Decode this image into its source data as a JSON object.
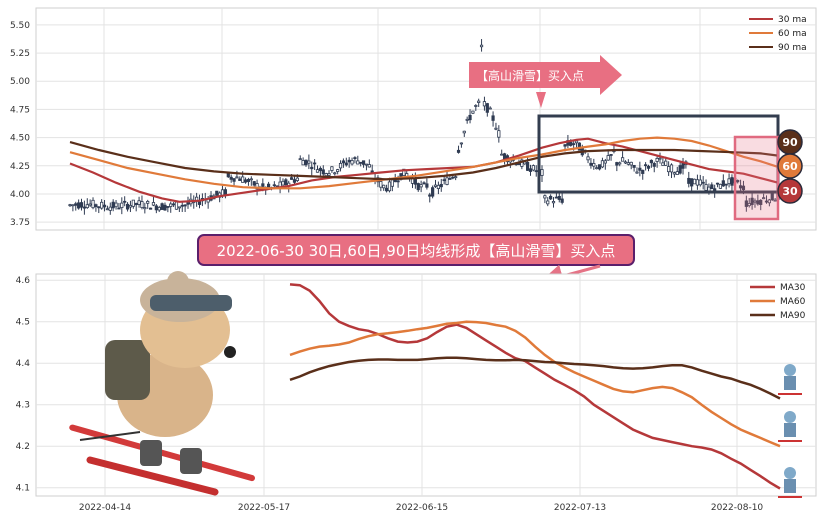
{
  "chart_data": [
    {
      "type": "candlestick",
      "ylim": [
        3.68,
        5.65
      ],
      "y_ticks": [
        "3.75",
        "4.00",
        "4.25",
        "4.50",
        "4.75",
        "5.00",
        "5.25",
        "5.50"
      ],
      "grid": true,
      "legend": [
        "30 ma",
        "60 ma",
        "90 ma"
      ],
      "legend_position": "top-right",
      "series": [
        {
          "name": "30 ma",
          "color": "#b5383a",
          "values": [
            [
              0,
              4.27
            ],
            [
              8,
              4.19
            ],
            [
              16,
              4.1
            ],
            [
              24,
              4.02
            ],
            [
              32,
              3.96
            ],
            [
              38,
              3.93
            ],
            [
              45,
              3.94
            ],
            [
              52,
              3.98
            ],
            [
              60,
              4.01
            ],
            [
              68,
              4.04
            ],
            [
              76,
              4.07
            ],
            [
              84,
              4.12
            ],
            [
              92,
              4.15
            ],
            [
              100,
              4.17
            ],
            [
              108,
              4.19
            ],
            [
              116,
              4.21
            ],
            [
              124,
              4.22
            ],
            [
              132,
              4.23
            ],
            [
              140,
              4.24
            ],
            [
              148,
              4.28
            ],
            [
              156,
              4.34
            ],
            [
              164,
              4.41
            ],
            [
              170,
              4.45
            ],
            [
              176,
              4.48
            ],
            [
              180,
              4.49
            ],
            [
              186,
              4.45
            ],
            [
              192,
              4.42
            ],
            [
              198,
              4.38
            ],
            [
              204,
              4.34
            ],
            [
              210,
              4.3
            ],
            [
              216,
              4.26
            ],
            [
              222,
              4.22
            ],
            [
              228,
              4.2
            ],
            [
              234,
              4.18
            ],
            [
              240,
              4.14
            ],
            [
              246,
              4.1
            ]
          ]
        },
        {
          "name": "60 ma",
          "color": "#e07a3a",
          "values": [
            [
              0,
              4.37
            ],
            [
              10,
              4.3
            ],
            [
              20,
              4.23
            ],
            [
              30,
              4.18
            ],
            [
              40,
              4.13
            ],
            [
              50,
              4.09
            ],
            [
              60,
              4.06
            ],
            [
              70,
              4.05
            ],
            [
              80,
              4.05
            ],
            [
              90,
              4.07
            ],
            [
              100,
              4.1
            ],
            [
              110,
              4.13
            ],
            [
              120,
              4.16
            ],
            [
              130,
              4.2
            ],
            [
              140,
              4.24
            ],
            [
              148,
              4.28
            ],
            [
              156,
              4.32
            ],
            [
              164,
              4.35
            ],
            [
              172,
              4.39
            ],
            [
              180,
              4.42
            ],
            [
              186,
              4.44
            ],
            [
              192,
              4.47
            ],
            [
              198,
              4.49
            ],
            [
              204,
              4.5
            ],
            [
              210,
              4.49
            ],
            [
              216,
              4.47
            ],
            [
              222,
              4.43
            ],
            [
              228,
              4.38
            ],
            [
              234,
              4.33
            ],
            [
              240,
              4.29
            ],
            [
              246,
              4.24
            ]
          ]
        },
        {
          "name": "90 ma",
          "color": "#5a2f1a",
          "values": [
            [
              0,
              4.46
            ],
            [
              10,
              4.39
            ],
            [
              20,
              4.33
            ],
            [
              30,
              4.28
            ],
            [
              40,
              4.23
            ],
            [
              50,
              4.2
            ],
            [
              60,
              4.18
            ],
            [
              70,
              4.17
            ],
            [
              80,
              4.16
            ],
            [
              90,
              4.15
            ],
            [
              100,
              4.14
            ],
            [
              110,
              4.13
            ],
            [
              120,
              4.14
            ],
            [
              130,
              4.16
            ],
            [
              140,
              4.19
            ],
            [
              148,
              4.23
            ],
            [
              156,
              4.28
            ],
            [
              164,
              4.33
            ],
            [
              172,
              4.36
            ],
            [
              180,
              4.38
            ],
            [
              190,
              4.39
            ],
            [
              200,
              4.39
            ],
            [
              210,
              4.39
            ],
            [
              220,
              4.38
            ],
            [
              230,
              4.37
            ],
            [
              240,
              4.36
            ],
            [
              246,
              4.34
            ]
          ]
        }
      ],
      "annotations": {
        "callout": "【高山滑雪】买入点",
        "bubbles": [
          "90",
          "60",
          "30"
        ]
      }
    },
    {
      "type": "line",
      "x_ticks": [
        "2022-04-14",
        "2022-05-17",
        "2022-06-15",
        "2022-07-13",
        "2022-08-10"
      ],
      "ylim": [
        4.08,
        4.615
      ],
      "y_ticks": [
        "4.1",
        "4.2",
        "4.3",
        "4.4",
        "4.5",
        "4.6"
      ],
      "grid": true,
      "legend_position": "top-right",
      "series": [
        {
          "name": "MA30",
          "color": "#b5383a",
          "values": [
            [
              0,
              4.59
            ],
            [
              3,
              4.588
            ],
            [
              6,
              4.575
            ],
            [
              9,
              4.55
            ],
            [
              12,
              4.52
            ],
            [
              15,
              4.5
            ],
            [
              18,
              4.49
            ],
            [
              21,
              4.482
            ],
            [
              24,
              4.478
            ],
            [
              27,
              4.47
            ],
            [
              30,
              4.46
            ],
            [
              33,
              4.452
            ],
            [
              36,
              4.45
            ],
            [
              39,
              4.452
            ],
            [
              42,
              4.46
            ],
            [
              45,
              4.475
            ],
            [
              48,
              4.488
            ],
            [
              51,
              4.493
            ],
            [
              54,
              4.485
            ],
            [
              57,
              4.47
            ],
            [
              60,
              4.455
            ],
            [
              63,
              4.44
            ],
            [
              66,
              4.425
            ],
            [
              69,
              4.412
            ],
            [
              72,
              4.405
            ],
            [
              75,
              4.39
            ],
            [
              78,
              4.375
            ],
            [
              81,
              4.36
            ],
            [
              84,
              4.348
            ],
            [
              87,
              4.335
            ],
            [
              90,
              4.32
            ],
            [
              93,
              4.3
            ],
            [
              96,
              4.285
            ],
            [
              99,
              4.27
            ],
            [
              102,
              4.255
            ],
            [
              105,
              4.24
            ],
            [
              108,
              4.23
            ],
            [
              111,
              4.22
            ],
            [
              114,
              4.215
            ],
            [
              117,
              4.21
            ],
            [
              120,
              4.205
            ],
            [
              123,
              4.2
            ],
            [
              126,
              4.197
            ],
            [
              129,
              4.192
            ],
            [
              132,
              4.183
            ],
            [
              135,
              4.17
            ],
            [
              138,
              4.158
            ],
            [
              141,
              4.143
            ],
            [
              144,
              4.128
            ],
            [
              147,
              4.112
            ],
            [
              150,
              4.098
            ]
          ]
        },
        {
          "name": "MA60",
          "color": "#e07a3a",
          "values": [
            [
              0,
              4.42
            ],
            [
              3,
              4.428
            ],
            [
              6,
              4.435
            ],
            [
              9,
              4.44
            ],
            [
              12,
              4.442
            ],
            [
              15,
              4.445
            ],
            [
              18,
              4.45
            ],
            [
              21,
              4.458
            ],
            [
              24,
              4.465
            ],
            [
              27,
              4.47
            ],
            [
              30,
              4.472
            ],
            [
              33,
              4.475
            ],
            [
              36,
              4.478
            ],
            [
              39,
              4.482
            ],
            [
              42,
              4.485
            ],
            [
              45,
              4.49
            ],
            [
              48,
              4.495
            ],
            [
              51,
              4.497
            ],
            [
              54,
              4.5
            ],
            [
              57,
              4.499
            ],
            [
              60,
              4.497
            ],
            [
              63,
              4.492
            ],
            [
              66,
              4.488
            ],
            [
              69,
              4.478
            ],
            [
              72,
              4.462
            ],
            [
              75,
              4.44
            ],
            [
              78,
              4.42
            ],
            [
              81,
              4.403
            ],
            [
              84,
              4.39
            ],
            [
              87,
              4.378
            ],
            [
              90,
              4.368
            ],
            [
              93,
              4.358
            ],
            [
              96,
              4.348
            ],
            [
              99,
              4.338
            ],
            [
              102,
              4.332
            ],
            [
              105,
              4.33
            ],
            [
              108,
              4.335
            ],
            [
              111,
              4.34
            ],
            [
              114,
              4.343
            ],
            [
              117,
              4.34
            ],
            [
              120,
              4.33
            ],
            [
              123,
              4.318
            ],
            [
              126,
              4.3
            ],
            [
              129,
              4.283
            ],
            [
              132,
              4.268
            ],
            [
              135,
              4.253
            ],
            [
              138,
              4.24
            ],
            [
              141,
              4.23
            ],
            [
              144,
              4.22
            ],
            [
              147,
              4.21
            ],
            [
              150,
              4.2
            ]
          ]
        },
        {
          "name": "MA90",
          "color": "#5a2f1a",
          "values": [
            [
              0,
              4.36
            ],
            [
              3,
              4.368
            ],
            [
              6,
              4.378
            ],
            [
              9,
              4.386
            ],
            [
              12,
              4.393
            ],
            [
              15,
              4.398
            ],
            [
              18,
              4.403
            ],
            [
              21,
              4.406
            ],
            [
              24,
              4.408
            ],
            [
              27,
              4.409
            ],
            [
              30,
              4.409
            ],
            [
              33,
              4.408
            ],
            [
              36,
              4.408
            ],
            [
              39,
              4.408
            ],
            [
              42,
              4.41
            ],
            [
              45,
              4.412
            ],
            [
              48,
              4.413
            ],
            [
              51,
              4.413
            ],
            [
              54,
              4.412
            ],
            [
              57,
              4.41
            ],
            [
              60,
              4.408
            ],
            [
              63,
              4.407
            ],
            [
              66,
              4.407
            ],
            [
              69,
              4.408
            ],
            [
              72,
              4.407
            ],
            [
              75,
              4.405
            ],
            [
              78,
              4.403
            ],
            [
              81,
              4.402
            ],
            [
              84,
              4.4
            ],
            [
              87,
              4.398
            ],
            [
              90,
              4.397
            ],
            [
              93,
              4.395
            ],
            [
              96,
              4.393
            ],
            [
              99,
              4.39
            ],
            [
              102,
              4.388
            ],
            [
              105,
              4.387
            ],
            [
              108,
              4.388
            ],
            [
              111,
              4.39
            ],
            [
              114,
              4.393
            ],
            [
              117,
              4.395
            ],
            [
              120,
              4.395
            ],
            [
              123,
              4.39
            ],
            [
              126,
              4.382
            ],
            [
              129,
              4.375
            ],
            [
              132,
              4.368
            ],
            [
              135,
              4.363
            ],
            [
              138,
              4.355
            ],
            [
              141,
              4.348
            ],
            [
              144,
              4.338
            ],
            [
              147,
              4.327
            ],
            [
              150,
              4.315
            ]
          ]
        }
      ],
      "annotations": {
        "banner": "2022-06-30 30日,60日,90日均线形成【高山滑雪】买入点"
      }
    }
  ]
}
